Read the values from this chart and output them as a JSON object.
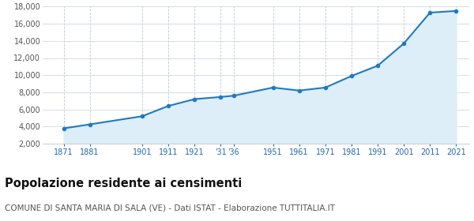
{
  "years": [
    1871,
    1881,
    1901,
    1911,
    1921,
    1931,
    1936,
    1951,
    1961,
    1971,
    1981,
    1991,
    2001,
    2011,
    2021
  ],
  "population": [
    3780,
    4250,
    5200,
    6400,
    7200,
    7450,
    7600,
    8550,
    8200,
    8550,
    9900,
    11100,
    13700,
    17300,
    17500
  ],
  "x_tick_positions": [
    1871,
    1881,
    1901,
    1911,
    1921,
    1931,
    1936,
    1951,
    1961,
    1971,
    1981,
    1991,
    2001,
    2011,
    2021
  ],
  "x_tick_labels": [
    "1871",
    "1881",
    "1901",
    "1911",
    "1921",
    "'31",
    "'36",
    "1951",
    "1961",
    "1971",
    "1981",
    "1991",
    "2001",
    "2011",
    "2021"
  ],
  "ylim": [
    2000,
    18000
  ],
  "xlim": [
    1863,
    2026
  ],
  "yticks": [
    2000,
    4000,
    6000,
    8000,
    10000,
    12000,
    14000,
    16000,
    18000
  ],
  "line_color": "#1e7abf",
  "fill_color": "#ddeef8",
  "marker_color": "#1e7abf",
  "background_color": "#ffffff",
  "grid_color_x": "#c0c8d0",
  "grid_color_y": "#d0d8e0",
  "title": "Popolazione residente ai censimenti",
  "subtitle": "COMUNE DI SANTA MARIA DI SALA (VE) - Dati ISTAT - Elaborazione TUTTITALIA.IT",
  "title_fontsize": 10.5,
  "subtitle_fontsize": 7.5,
  "tick_label_color": "#2266aa",
  "ytick_label_color": "#555555"
}
